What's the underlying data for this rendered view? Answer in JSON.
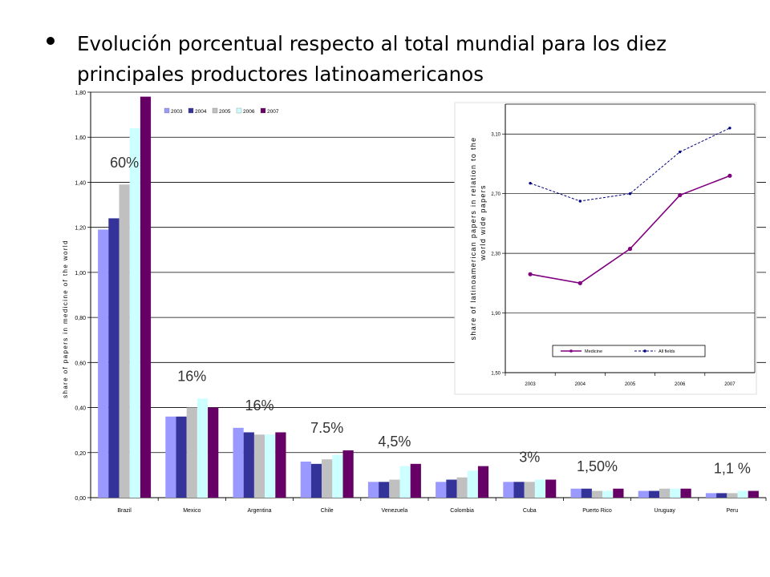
{
  "slide": {
    "bullet": "Evolución porcentual respecto al total mundial para los diez principales productores latinoamericanos"
  },
  "chart_data": [
    {
      "type": "bar",
      "title": "",
      "xlabel": "",
      "ylabel": "share of papers in medicine of the world",
      "ylim": [
        0,
        1.8
      ],
      "yticks": [
        "0,00",
        "0,20",
        "0,40",
        "0,60",
        "0,80",
        "1,00",
        "1,20",
        "1,40",
        "1,60",
        "1,80"
      ],
      "categories": [
        "Brazil",
        "Mexico",
        "Argentina",
        "Chile",
        "Venezuela",
        "Colombia",
        "Cuba",
        "Puerto Rico",
        "Uruguay",
        "Peru"
      ],
      "series": [
        {
          "name": "2003",
          "color": "#9999ff",
          "values": [
            1.19,
            0.36,
            0.31,
            0.16,
            0.07,
            0.07,
            0.07,
            0.04,
            0.03,
            0.02
          ]
        },
        {
          "name": "2004",
          "color": "#333399",
          "values": [
            1.24,
            0.36,
            0.29,
            0.15,
            0.07,
            0.08,
            0.07,
            0.04,
            0.03,
            0.02
          ]
        },
        {
          "name": "2005",
          "color": "#c0c0c0",
          "values": [
            1.39,
            0.4,
            0.28,
            0.17,
            0.08,
            0.09,
            0.07,
            0.03,
            0.04,
            0.02
          ]
        },
        {
          "name": "2006",
          "color": "#ccffff",
          "values": [
            1.64,
            0.44,
            0.28,
            0.19,
            0.14,
            0.12,
            0.08,
            0.03,
            0.04,
            0.03
          ]
        },
        {
          "name": "2007",
          "color": "#660066",
          "values": [
            1.78,
            0.4,
            0.29,
            0.21,
            0.15,
            0.14,
            0.08,
            0.04,
            0.04,
            0.03
          ]
        }
      ],
      "legend": "top",
      "grid": true,
      "annotations": [
        {
          "category": "Brazil",
          "text": "60%"
        },
        {
          "category": "Mexico",
          "text": "16%"
        },
        {
          "category": "Argentina",
          "text": "16%"
        },
        {
          "category": "Chile",
          "text": "7.5%"
        },
        {
          "category": "Venezuela",
          "text": "4,5%"
        },
        {
          "category": "Cuba",
          "text": "3%"
        },
        {
          "category": "Puerto Rico",
          "text": "1,50%"
        },
        {
          "category": "Peru",
          "text": "1,1 %"
        }
      ]
    },
    {
      "type": "line",
      "title": "",
      "xlabel": "",
      "ylabel": "share of latinoamerican papers in relation to the world wide papers",
      "ylim": [
        1.5,
        3.3
      ],
      "yticks": [
        "1,50",
        "1,90",
        "2,30",
        "2,70",
        "3,10"
      ],
      "x": [
        "2003",
        "2004",
        "2005",
        "2006",
        "2007"
      ],
      "series": [
        {
          "name": "Medicine",
          "color": "#800080",
          "dash": "solid",
          "values": [
            2.16,
            2.1,
            2.33,
            2.69,
            2.82
          ]
        },
        {
          "name": "All fields",
          "color": "#000080",
          "dash": "dashed",
          "values": [
            2.77,
            2.65,
            2.7,
            2.98,
            3.14
          ]
        }
      ],
      "legend": "bottom",
      "grid": true
    }
  ]
}
